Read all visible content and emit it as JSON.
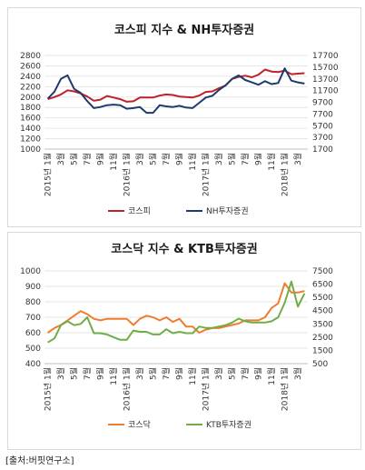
{
  "chart_data": [
    {
      "type": "line",
      "title": "코스피 지수 & NH투자증권",
      "x_tick_labels": [
        "2015년 1월",
        "3월",
        "5월",
        "7월",
        "9월",
        "11월",
        "2016년 1월",
        "3월",
        "5월",
        "7월",
        "9월",
        "11월",
        "2017년 1월",
        "3월",
        "5월",
        "7월",
        "9월",
        "11월",
        "2018년 1월",
        "3월"
      ],
      "y_left": {
        "ticks": [
          1000,
          1200,
          1400,
          1600,
          1800,
          2000,
          2200,
          2400,
          2600,
          2800
        ],
        "range": [
          1000,
          2800
        ]
      },
      "y_right": {
        "ticks": [
          1700,
          3700,
          5700,
          7700,
          9700,
          11700,
          13700,
          15700,
          17700
        ],
        "range": [
          1700,
          17700
        ]
      },
      "series": [
        {
          "name": "코스피",
          "axis": "left",
          "color": "#c0202a",
          "values": [
            1960,
            2000,
            2050,
            2130,
            2110,
            2070,
            2010,
            1930,
            1950,
            2020,
            1990,
            1960,
            1910,
            1920,
            1990,
            1990,
            1990,
            2030,
            2050,
            2040,
            2010,
            2000,
            1990,
            2030,
            2100,
            2110,
            2170,
            2220,
            2350,
            2390,
            2410,
            2380,
            2430,
            2530,
            2490,
            2480,
            2510,
            2440,
            2450,
            2460
          ]
        },
        {
          "name": "NH투자증권",
          "axis": "right",
          "color": "#1f3a6e",
          "values": [
            10300,
            11500,
            13700,
            14300,
            12000,
            11300,
            9900,
            8700,
            8900,
            9200,
            9300,
            9200,
            8600,
            8700,
            8900,
            7900,
            7900,
            9200,
            9000,
            8900,
            9100,
            8800,
            8700,
            9600,
            10500,
            10800,
            11800,
            12600,
            13700,
            14300,
            13500,
            13100,
            12700,
            13300,
            12800,
            13000,
            15500,
            13400,
            13100,
            12900
          ]
        }
      ]
    },
    {
      "type": "line",
      "title": "코스닥 지수 & KTB투자증권",
      "x_tick_labels": [
        "2015년 1월",
        "3월",
        "5월",
        "7월",
        "9월",
        "11월",
        "2016년 1월",
        "3월",
        "5월",
        "7월",
        "9월",
        "11월",
        "2017년 1월",
        "3월",
        "5월",
        "7월",
        "9월",
        "11월",
        "2018년 1월",
        "3월"
      ],
      "y_left": {
        "ticks": [
          400,
          500,
          600,
          700,
          800,
          900,
          1000
        ],
        "range": [
          400,
          1000
        ]
      },
      "y_right": {
        "ticks": [
          500,
          1500,
          2500,
          3500,
          4500,
          5500,
          6500,
          7500
        ],
        "range": [
          500,
          7500
        ]
      },
      "series": [
        {
          "name": "코스닥",
          "axis": "left",
          "color": "#ed7d31",
          "values": [
            600,
            630,
            650,
            680,
            710,
            740,
            720,
            690,
            680,
            690,
            690,
            690,
            690,
            650,
            690,
            710,
            700,
            680,
            700,
            670,
            690,
            640,
            640,
            600,
            620,
            630,
            630,
            640,
            650,
            660,
            680,
            680,
            680,
            700,
            760,
            790,
            920,
            860,
            860,
            870
          ]
        },
        {
          "name": "KTB투자증권",
          "axis": "right",
          "color": "#70ad47",
          "values": [
            2100,
            2400,
            3400,
            3700,
            3400,
            3500,
            4000,
            2800,
            2800,
            2700,
            2500,
            2300,
            2300,
            3000,
            2900,
            2900,
            2700,
            2700,
            3100,
            2800,
            2900,
            2800,
            2800,
            3300,
            3200,
            3200,
            3300,
            3400,
            3600,
            3900,
            3700,
            3600,
            3600,
            3600,
            3700,
            4000,
            5100,
            6700,
            4800,
            5800
          ]
        }
      ]
    }
  ],
  "source_label": "[출처:버핏연구소]"
}
